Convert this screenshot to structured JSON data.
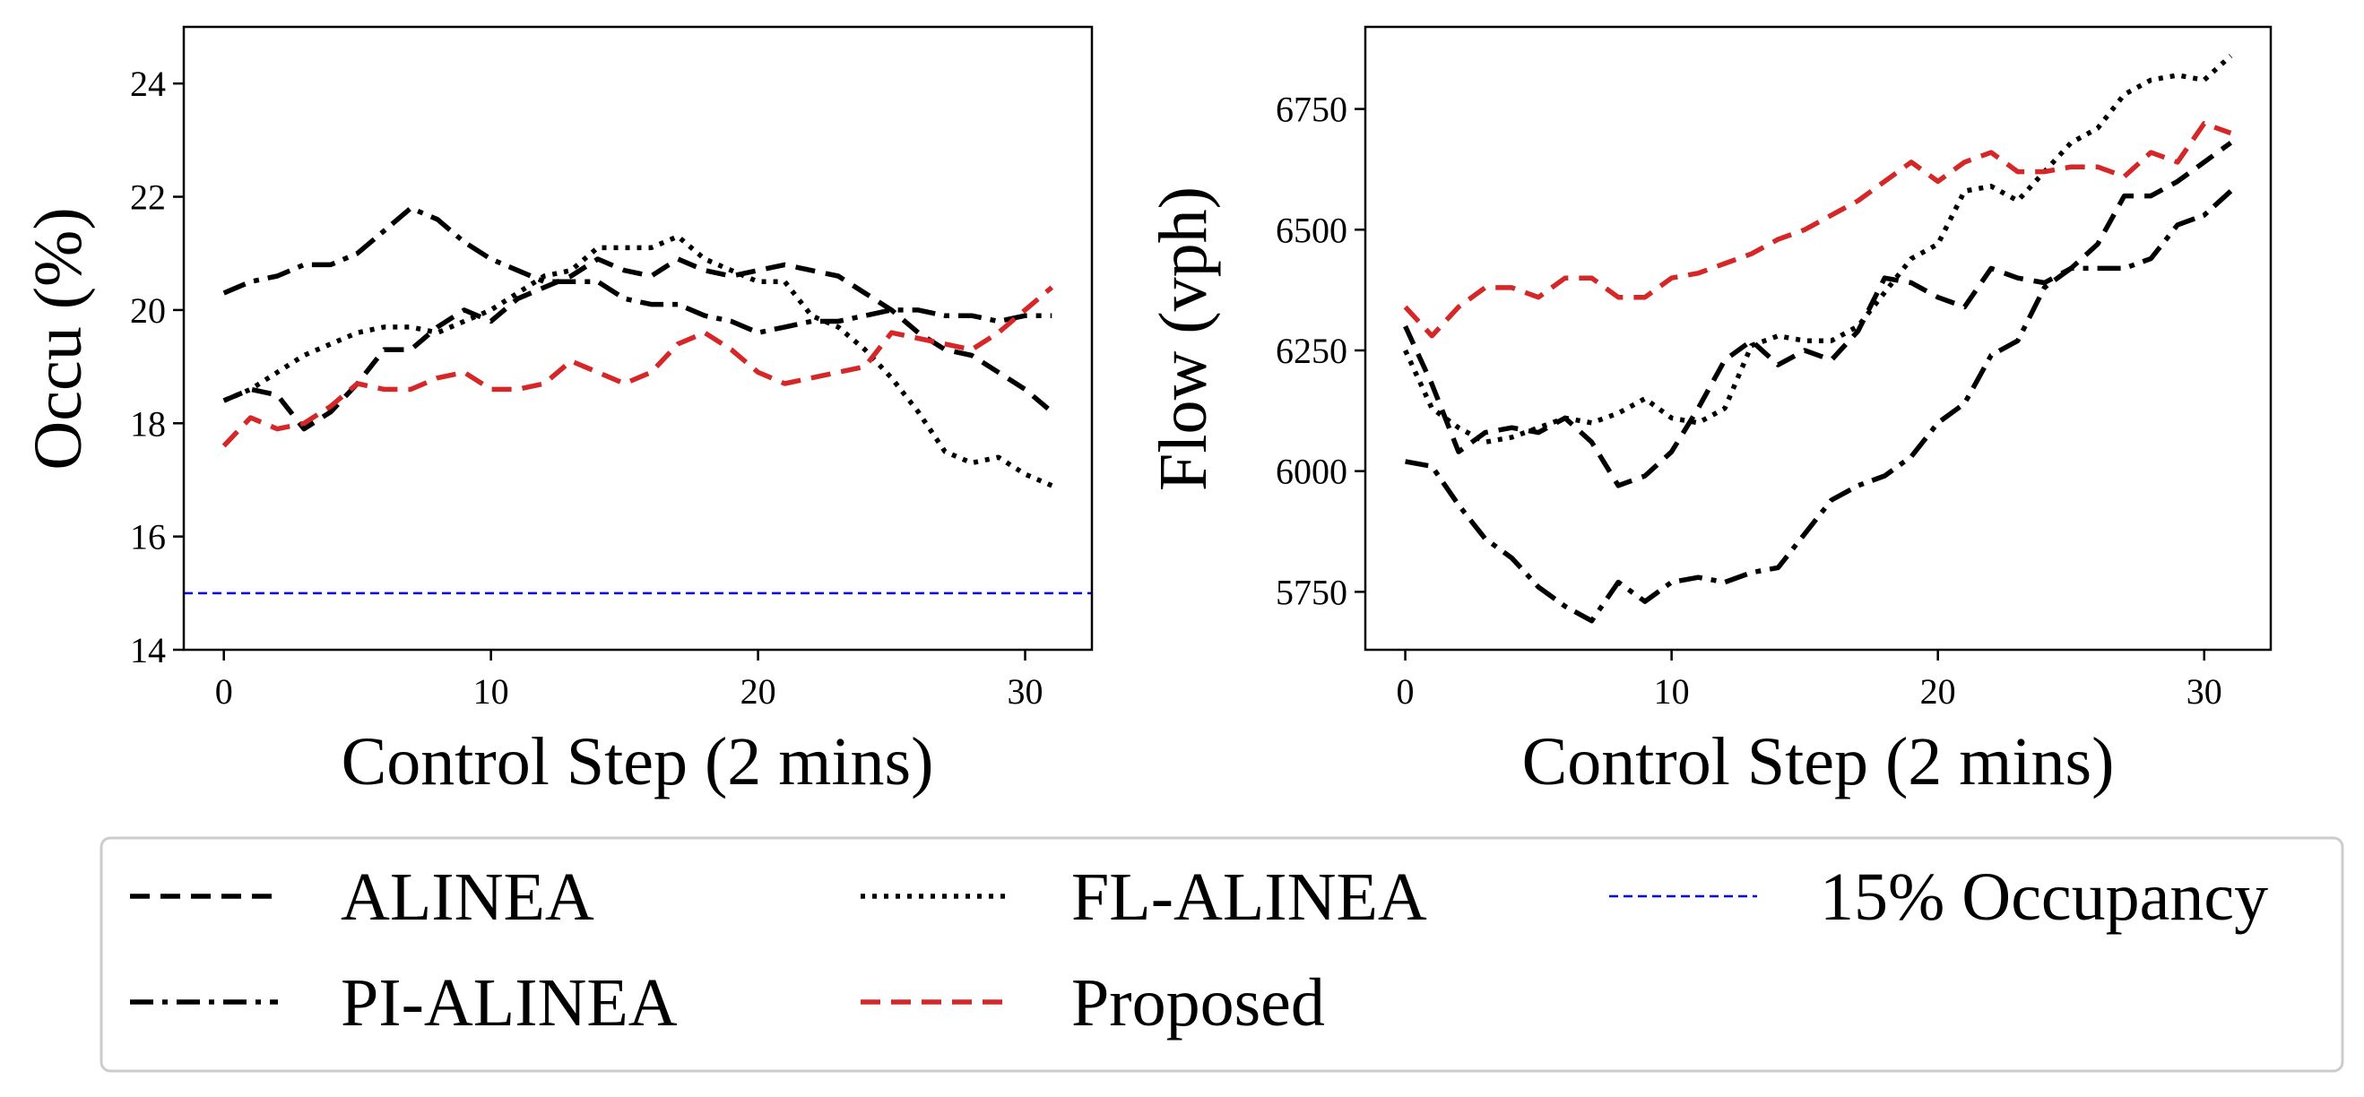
{
  "colors": {
    "black": "#000000",
    "proposed": "#d62728",
    "threshold": "#0000ff",
    "legend_border": "#cccccc"
  },
  "chart_data": [
    {
      "type": "line",
      "xlabel": "Control Step (2 mins)",
      "ylabel": "Occu (%)",
      "xlim": [
        -1.5,
        32.5
      ],
      "ylim": [
        14,
        25
      ],
      "xticks": [
        0,
        10,
        20,
        30
      ],
      "yticks": [
        14,
        16,
        18,
        20,
        22,
        24
      ],
      "grid": false,
      "series": [
        {
          "name": "ALINEA",
          "style": "dashed",
          "values": [
            18.4,
            18.6,
            18.5,
            17.9,
            18.2,
            18.7,
            19.3,
            19.3,
            19.7,
            20.0,
            19.8,
            20.2,
            20.4,
            20.6,
            20.9,
            20.7,
            20.6,
            20.9,
            20.7,
            20.6,
            20.7,
            20.8,
            20.7,
            20.6,
            20.3,
            20.0,
            19.6,
            19.3,
            19.2,
            18.9,
            18.6,
            18.2
          ]
        },
        {
          "name": "FL-ALINEA",
          "style": "dotted",
          "values": [
            18.4,
            18.6,
            18.9,
            19.2,
            19.4,
            19.6,
            19.7,
            19.7,
            19.6,
            19.8,
            20.0,
            20.3,
            20.6,
            20.7,
            21.1,
            21.1,
            21.1,
            21.3,
            20.9,
            20.7,
            20.5,
            20.5,
            19.9,
            19.7,
            19.3,
            18.8,
            18.2,
            17.5,
            17.3,
            17.4,
            17.1,
            16.9
          ]
        },
        {
          "name": "PI-ALINEA",
          "style": "dashdot",
          "values": [
            20.3,
            20.5,
            20.6,
            20.8,
            20.8,
            21.0,
            21.4,
            21.8,
            21.6,
            21.2,
            20.9,
            20.7,
            20.5,
            20.5,
            20.5,
            20.2,
            20.1,
            20.1,
            19.9,
            19.8,
            19.6,
            19.7,
            19.8,
            19.8,
            19.9,
            20.0,
            20.0,
            19.9,
            19.9,
            19.8,
            19.9,
            19.9
          ]
        },
        {
          "name": "Proposed",
          "style": "dashed-red",
          "values": [
            17.6,
            18.1,
            17.9,
            18.0,
            18.3,
            18.7,
            18.6,
            18.6,
            18.8,
            18.9,
            18.6,
            18.6,
            18.7,
            19.1,
            18.9,
            18.7,
            18.9,
            19.4,
            19.6,
            19.3,
            18.9,
            18.7,
            18.8,
            18.9,
            19.0,
            19.6,
            19.5,
            19.4,
            19.3,
            19.6,
            20.0,
            20.4
          ]
        }
      ],
      "hline": {
        "name": "15% Occupancy",
        "value": 15
      }
    },
    {
      "type": "line",
      "xlabel": "Control Step (2 mins)",
      "ylabel": "Flow (vph)",
      "xlim": [
        -1.5,
        32.5
      ],
      "ylim": [
        5630,
        6920
      ],
      "xticks": [
        0,
        10,
        20,
        30
      ],
      "yticks": [
        5750,
        6000,
        6250,
        6500,
        6750
      ],
      "grid": false,
      "series": [
        {
          "name": "ALINEA",
          "style": "dashed",
          "values": [
            6300,
            6180,
            6040,
            6080,
            6090,
            6080,
            6110,
            6060,
            5970,
            5990,
            6040,
            6130,
            6230,
            6270,
            6220,
            6250,
            6230,
            6290,
            6400,
            6390,
            6360,
            6340,
            6420,
            6400,
            6390,
            6420,
            6470,
            6570,
            6570,
            6600,
            6640,
            6680
          ]
        },
        {
          "name": "FL-ALINEA",
          "style": "dotted",
          "values": [
            6250,
            6130,
            6090,
            6060,
            6070,
            6090,
            6110,
            6100,
            6120,
            6150,
            6110,
            6100,
            6130,
            6260,
            6280,
            6270,
            6270,
            6300,
            6370,
            6440,
            6470,
            6580,
            6590,
            6560,
            6620,
            6680,
            6710,
            6780,
            6810,
            6820,
            6810,
            6860
          ]
        },
        {
          "name": "PI-ALINEA",
          "style": "dashdot",
          "values": [
            6020,
            6010,
            5930,
            5860,
            5820,
            5760,
            5720,
            5690,
            5770,
            5730,
            5770,
            5780,
            5770,
            5790,
            5800,
            5870,
            5940,
            5970,
            5990,
            6030,
            6100,
            6140,
            6240,
            6270,
            6380,
            6420,
            6420,
            6420,
            6440,
            6510,
            6530,
            6580
          ]
        },
        {
          "name": "Proposed",
          "style": "dashed-red",
          "values": [
            6340,
            6280,
            6340,
            6380,
            6380,
            6360,
            6400,
            6400,
            6360,
            6360,
            6400,
            6410,
            6430,
            6450,
            6480,
            6500,
            6530,
            6560,
            6600,
            6640,
            6600,
            6640,
            6660,
            6620,
            6620,
            6630,
            6630,
            6610,
            6660,
            6640,
            6720,
            6700
          ]
        }
      ]
    }
  ],
  "legend": {
    "placement": "bottom",
    "items": [
      {
        "label": "ALINEA",
        "style": "dashed"
      },
      {
        "label": "FL-ALINEA",
        "style": "dotted"
      },
      {
        "label": "15% Occupancy",
        "style": "thin-dashed-blue"
      },
      {
        "label": "PI-ALINEA",
        "style": "dashdot"
      },
      {
        "label": "Proposed",
        "style": "dashed-red"
      }
    ]
  }
}
